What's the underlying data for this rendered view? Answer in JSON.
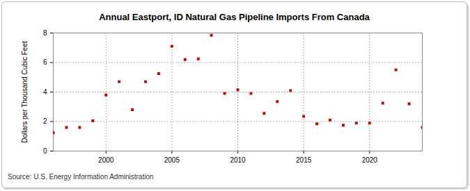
{
  "chart_data": {
    "type": "scatter",
    "title": "Annual Eastport, ID Natural Gas Pipeline Imports From Canada",
    "y_label": "Dollars per Thousand Cubic Feet",
    "source": "Source: U.S. Energy Information Administration",
    "x": [
      1996,
      1997,
      1998,
      1999,
      2000,
      2001,
      2002,
      2003,
      2004,
      2005,
      2006,
      2007,
      2008,
      2009,
      2010,
      2011,
      2012,
      2013,
      2014,
      2015,
      2016,
      2017,
      2018,
      2019,
      2020,
      2021,
      2022,
      2023,
      2024
    ],
    "values": [
      1.25,
      1.6,
      1.6,
      2.05,
      3.8,
      4.7,
      2.8,
      4.7,
      5.25,
      7.1,
      6.2,
      6.25,
      7.85,
      3.9,
      4.15,
      3.9,
      2.55,
      3.35,
      4.1,
      2.35,
      1.85,
      2.1,
      1.75,
      1.9,
      1.9,
      3.25,
      5.5,
      3.2,
      1.6
    ],
    "color": "#cc0000",
    "marker": "square",
    "xlim": [
      1996,
      2024
    ],
    "ylim": [
      0,
      8
    ],
    "xticks": [
      2000,
      2005,
      2010,
      2015,
      2020
    ],
    "yticks": [
      0,
      2,
      4,
      6,
      8
    ],
    "grid": true
  }
}
